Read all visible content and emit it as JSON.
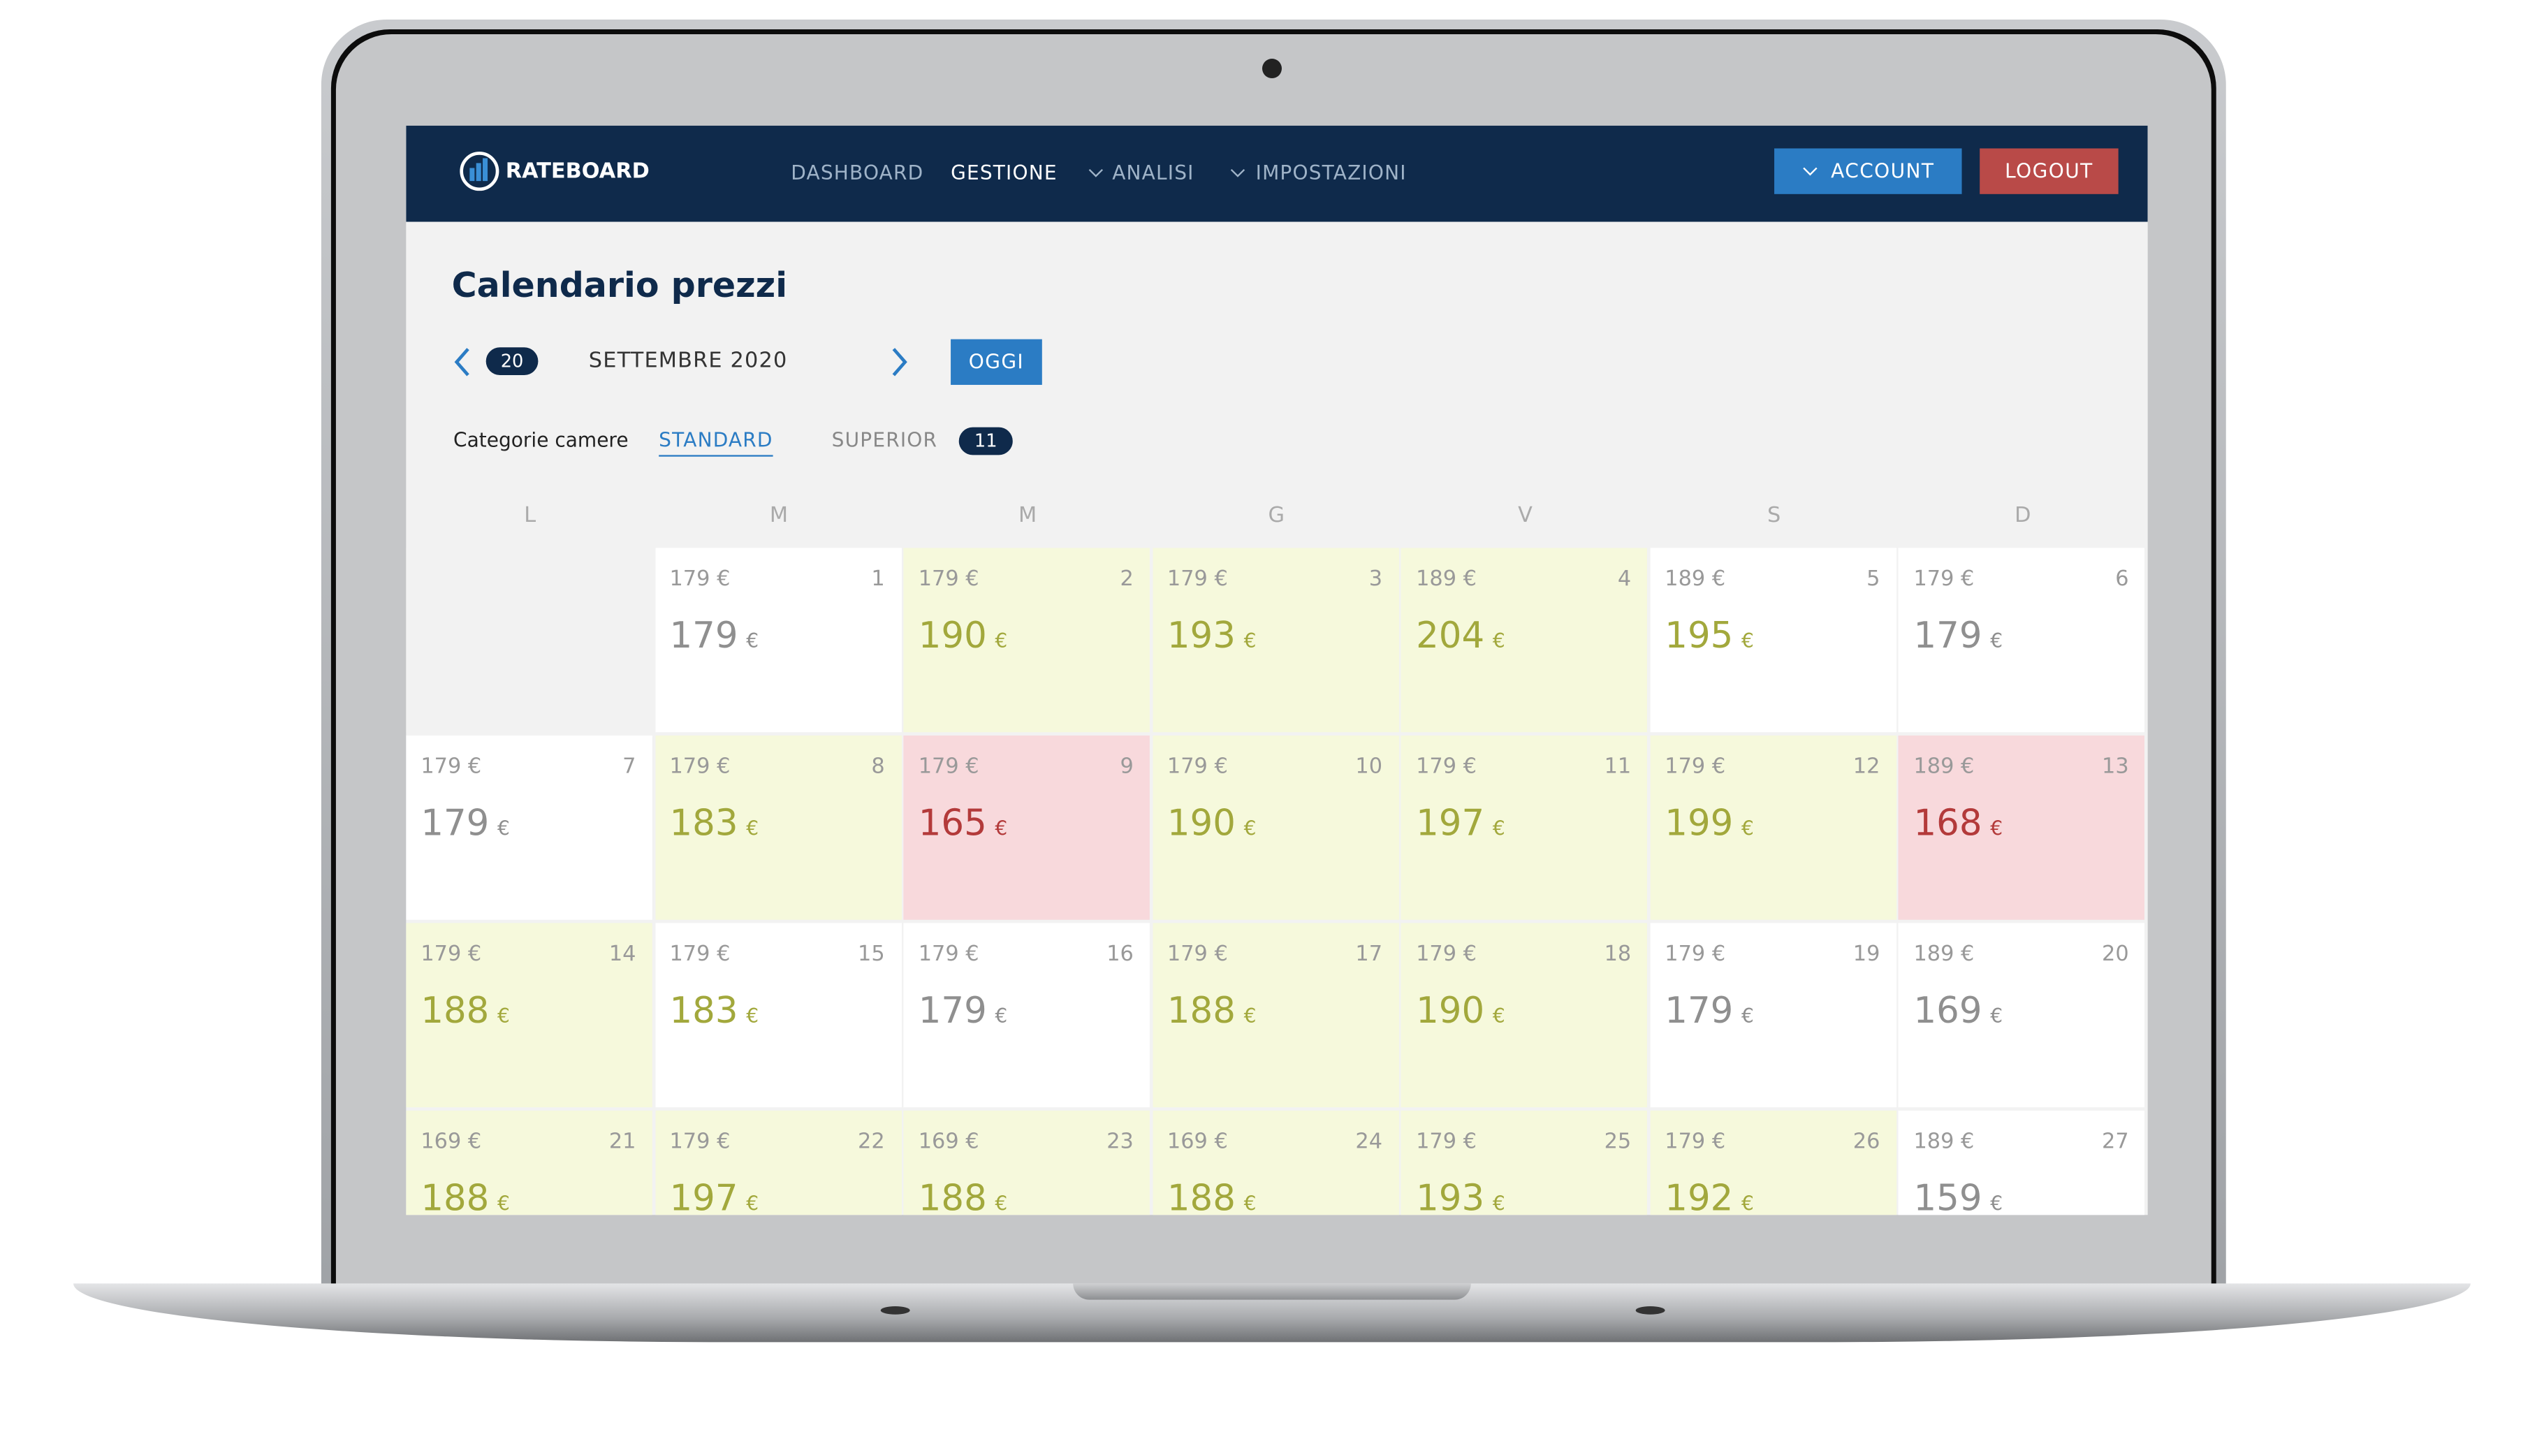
{
  "header": {
    "logo": "RATEBOARD",
    "nav": [
      "DASHBOARD",
      "GESTIONE",
      "ANALISI",
      "IMPOSTAZIONI"
    ],
    "account": "ACCOUNT",
    "logout": "LOGOUT"
  },
  "page": {
    "title": "Calendario prezzi",
    "week_badge": "20",
    "month": "SETTEMBRE 2020",
    "today": "OGGI",
    "categories_label": "Categorie camere",
    "categories": [
      "STANDARD",
      "SUPERIOR"
    ],
    "superior_badge": "11"
  },
  "calendar": {
    "weekdays": [
      "L",
      "M",
      "M",
      "G",
      "V",
      "S",
      "D"
    ],
    "currency": "€",
    "rows": [
      [
        null,
        {
          "day": 1,
          "base": "179 €",
          "price": 179,
          "bg": "white",
          "tone": "grey"
        },
        {
          "day": 2,
          "base": "179 €",
          "price": 190,
          "bg": "green",
          "tone": "green"
        },
        {
          "day": 3,
          "base": "179 €",
          "price": 193,
          "bg": "green",
          "tone": "green"
        },
        {
          "day": 4,
          "base": "189 €",
          "price": 204,
          "bg": "green",
          "tone": "green"
        },
        {
          "day": 5,
          "base": "189 €",
          "price": 195,
          "bg": "white",
          "tone": "green"
        },
        {
          "day": 6,
          "base": "179 €",
          "price": 179,
          "bg": "white",
          "tone": "grey"
        }
      ],
      [
        {
          "day": 7,
          "base": "179 €",
          "price": 179,
          "bg": "white",
          "tone": "grey"
        },
        {
          "day": 8,
          "base": "179 €",
          "price": 183,
          "bg": "green",
          "tone": "green"
        },
        {
          "day": 9,
          "base": "179 €",
          "price": 165,
          "bg": "red",
          "tone": "red"
        },
        {
          "day": 10,
          "base": "179 €",
          "price": 190,
          "bg": "green",
          "tone": "green"
        },
        {
          "day": 11,
          "base": "179 €",
          "price": 197,
          "bg": "green",
          "tone": "green"
        },
        {
          "day": 12,
          "base": "179 €",
          "price": 199,
          "bg": "green",
          "tone": "green"
        },
        {
          "day": 13,
          "base": "189 €",
          "price": 168,
          "bg": "red",
          "tone": "red"
        }
      ],
      [
        {
          "day": 14,
          "base": "179 €",
          "price": 188,
          "bg": "green",
          "tone": "green"
        },
        {
          "day": 15,
          "base": "179 €",
          "price": 183,
          "bg": "white",
          "tone": "green"
        },
        {
          "day": 16,
          "base": "179 €",
          "price": 179,
          "bg": "white",
          "tone": "grey"
        },
        {
          "day": 17,
          "base": "179 €",
          "price": 188,
          "bg": "green",
          "tone": "green"
        },
        {
          "day": 18,
          "base": "179 €",
          "price": 190,
          "bg": "green",
          "tone": "green"
        },
        {
          "day": 19,
          "base": "179 €",
          "price": 179,
          "bg": "white",
          "tone": "grey"
        },
        {
          "day": 20,
          "base": "189 €",
          "price": 169,
          "bg": "white",
          "tone": "grey"
        }
      ],
      [
        {
          "day": 21,
          "base": "169 €",
          "price": 188,
          "bg": "green",
          "tone": "green"
        },
        {
          "day": 22,
          "base": "179 €",
          "price": 197,
          "bg": "green",
          "tone": "green"
        },
        {
          "day": 23,
          "base": "169 €",
          "price": 188,
          "bg": "green",
          "tone": "green"
        },
        {
          "day": 24,
          "base": "169 €",
          "price": 188,
          "bg": "green",
          "tone": "green"
        },
        {
          "day": 25,
          "base": "179 €",
          "price": 193,
          "bg": "green",
          "tone": "green"
        },
        {
          "day": 26,
          "base": "179 €",
          "price": 192,
          "bg": "green",
          "tone": "green"
        },
        {
          "day": 27,
          "base": "189 €",
          "price": 159,
          "bg": "white",
          "tone": "grey"
        }
      ]
    ]
  }
}
